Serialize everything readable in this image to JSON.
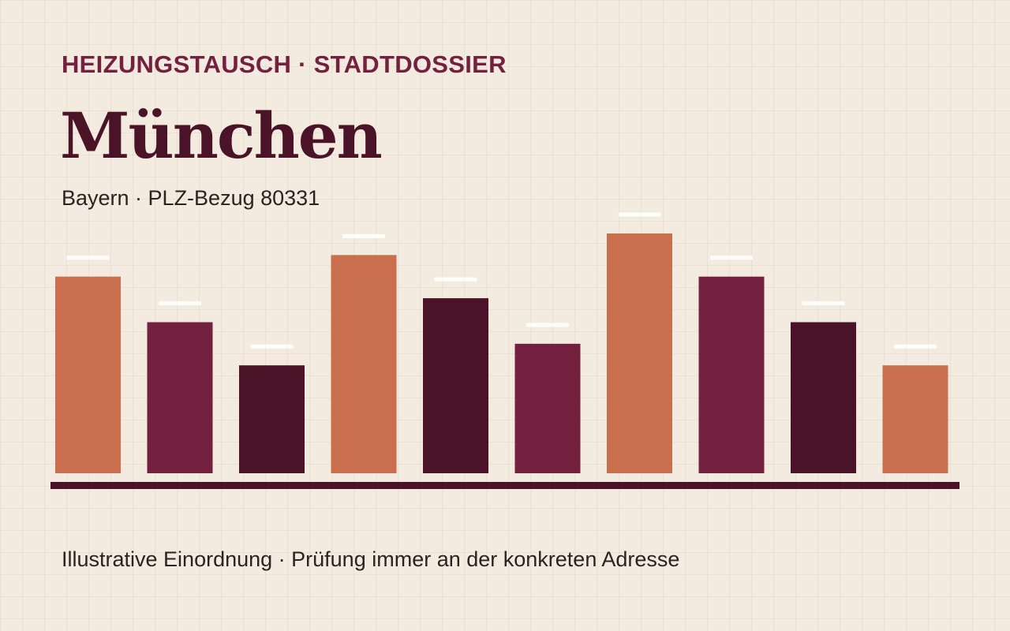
{
  "header": {
    "kicker": "HEIZUNGSTAUSCH · STADTDOSSIER",
    "city": "München",
    "subtitle": "Bayern · PLZ-Bezug 80331"
  },
  "footer": {
    "note": "Illustrative Einordnung · Prüfung immer an der konkreten Adresse"
  },
  "colors": {
    "terracotta": "#c96f4e",
    "plum": "#73213f",
    "aubergine": "#4a1327",
    "cap": "#ffffff",
    "baseline": "#4a1327"
  },
  "chart_data": {
    "type": "bar",
    "title": "",
    "xlabel": "",
    "ylabel": "",
    "categories": [
      "",
      "",
      "",
      "",
      "",
      "",
      "",
      "",
      "",
      ""
    ],
    "values": [
      0.82,
      0.63,
      0.45,
      0.91,
      0.73,
      0.54,
      1.0,
      0.82,
      0.63,
      0.45
    ],
    "bar_colors": [
      "terracotta",
      "plum",
      "aubergine",
      "terracotta",
      "aubergine",
      "plum",
      "terracotta",
      "plum",
      "aubergine",
      "terracotta"
    ],
    "ylim": [
      0,
      1
    ],
    "grid": false,
    "legend": "none",
    "value_caps": true
  }
}
